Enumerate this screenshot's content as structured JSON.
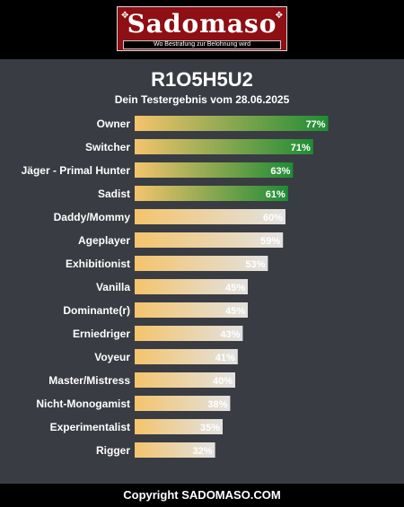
{
  "header": {
    "logo_title": "Sadomaso",
    "logo_slogan": "Wo Bestrafung zur Belohnung wird",
    "ornament_left": "✥",
    "ornament_right": "✥"
  },
  "result": {
    "title": "R1O5H5U2",
    "subtitle": "Dein Testergebnis vom 28.06.2025"
  },
  "chart_data": {
    "type": "bar",
    "orientation": "horizontal",
    "categories": [
      "Owner",
      "Switcher",
      "Jäger - Primal Hunter",
      "Sadist",
      "Daddy/Mommy",
      "Ageplayer",
      "Exhibitionist",
      "Vanilla",
      "Dominante(r)",
      "Erniedriger",
      "Voyeur",
      "Master/Mistress",
      "Nicht-Monogamist",
      "Experimentalist",
      "Rigger"
    ],
    "values": [
      77,
      71,
      63,
      61,
      60,
      59,
      53,
      45,
      45,
      43,
      41,
      40,
      38,
      35,
      32
    ],
    "value_labels": [
      "77%",
      "71%",
      "63%",
      "61%",
      "60%",
      "59%",
      "53%",
      "45%",
      "45%",
      "43%",
      "41%",
      "40%",
      "38%",
      "35%",
      "32%"
    ],
    "xlim": [
      0,
      100
    ],
    "grid": false,
    "colors": {
      "bar_start": "#f4c46c",
      "bar_high_end": "#1e8c35",
      "bar_low_end": "#e2e2e2",
      "high_threshold": 61
    }
  },
  "footer": {
    "copyright": "Copyright SADOMASO.COM"
  }
}
